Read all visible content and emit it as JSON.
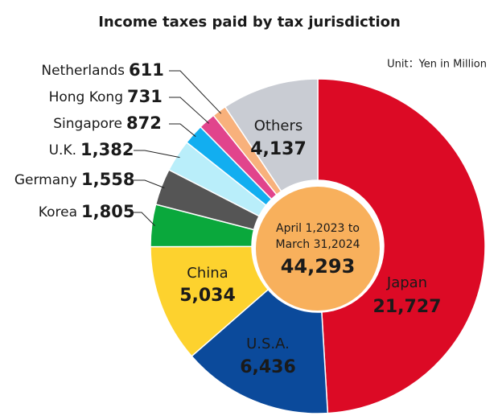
{
  "chart_data": {
    "type": "donut",
    "title": "Income taxes paid by tax jurisdiction",
    "unit": "Unit：Yen in Million",
    "categories": [
      "Japan",
      "U.S.A.",
      "China",
      "Korea",
      "Germany",
      "U.K.",
      "Singapore",
      "Hong Kong",
      "Netherlands",
      "Others"
    ],
    "values": [
      21727,
      6436,
      5034,
      1805,
      1558,
      1382,
      872,
      731,
      611,
      4137
    ],
    "value_labels": [
      "21,727",
      "6,436",
      "5,034",
      "1,805",
      "1,558",
      "1,382",
      "872",
      "731",
      "611",
      "4,137"
    ],
    "colors": [
      "#dc0a25",
      "#0b4a9b",
      "#fdd22e",
      "#0aa83c",
      "#555555",
      "#b9eefa",
      "#12aef0",
      "#e1448c",
      "#f8b17c",
      "#c9ccd3"
    ],
    "center_lines": [
      "April 1,2023 to",
      "March 31,2024"
    ],
    "total": {
      "value": 44293,
      "label": "44,293"
    }
  }
}
